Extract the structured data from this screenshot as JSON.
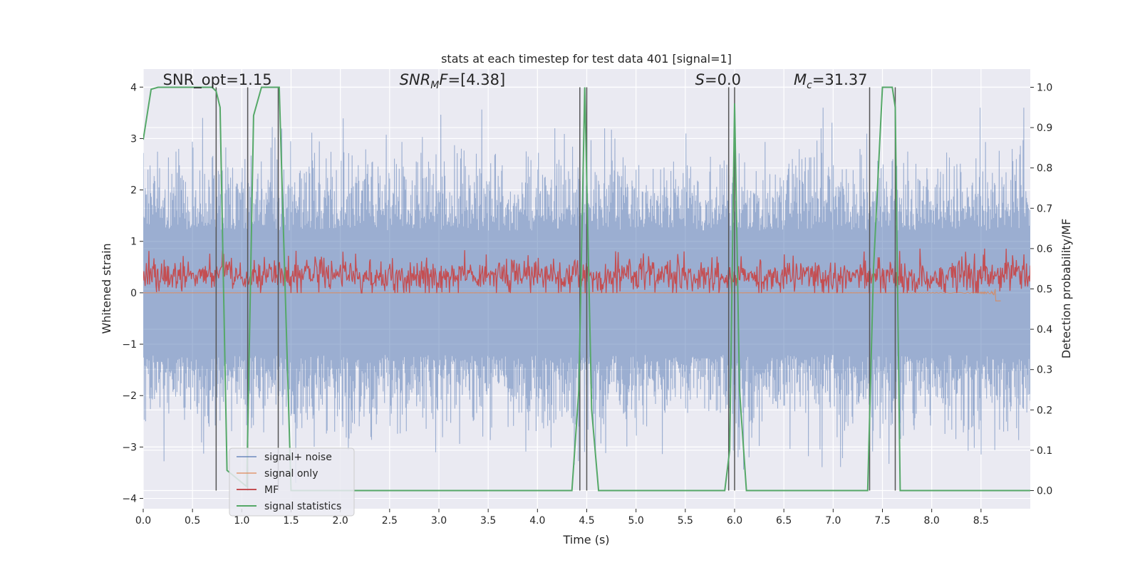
{
  "chart_data": {
    "type": "line",
    "title": "stats at each timestep for test data 401 [signal=1]",
    "xlabel": "Time (s)",
    "ylabel": "Whitened strain",
    "y2label": "Detection probability/MF",
    "xlim": [
      0.0,
      9.0
    ],
    "ylim": [
      -4.2,
      4.35
    ],
    "y2lim": [
      -0.045,
      1.045
    ],
    "xticks": [
      0.0,
      0.5,
      1.0,
      1.5,
      2.0,
      2.5,
      3.0,
      3.5,
      4.0,
      4.5,
      5.0,
      5.5,
      6.0,
      6.5,
      7.0,
      7.5,
      8.0,
      8.5
    ],
    "xtick_labels": [
      "0.0",
      "0.5",
      "1.0",
      "1.5",
      "2.0",
      "2.5",
      "3.0",
      "3.5",
      "4.0",
      "4.5",
      "5.0",
      "5.5",
      "6.0",
      "6.5",
      "7.0",
      "7.5",
      "8.0",
      "8.5"
    ],
    "yticks": [
      -4,
      -3,
      -2,
      -1,
      0,
      1,
      2,
      3,
      4
    ],
    "ytick_labels": [
      "−4",
      "−3",
      "−2",
      "−1",
      "0",
      "1",
      "2",
      "3",
      "4"
    ],
    "y2ticks": [
      0.0,
      0.1,
      0.2,
      0.3,
      0.4,
      0.5,
      0.6,
      0.7,
      0.8,
      0.9,
      1.0
    ],
    "y2tick_labels": [
      "0.0",
      "0.1",
      "0.2",
      "0.3",
      "0.4",
      "0.5",
      "0.6",
      "0.7",
      "0.8",
      "0.9",
      "1.0"
    ],
    "grid": true,
    "legend_position": "lower-left",
    "annotations": [
      {
        "text": "SNR_opt=1.15",
        "x": 0.2,
        "y": 4.1,
        "italic": false
      },
      {
        "text": "SNR_MF=[4.38]",
        "x": 2.6,
        "y": 4.1,
        "italic": true
      },
      {
        "text": "S=0.0",
        "x": 5.6,
        "y": 4.1,
        "italic": true
      },
      {
        "text": "M_c=31.37",
        "x": 6.6,
        "y": 4.1,
        "italic": true
      }
    ],
    "series": [
      {
        "name": "signal+ noise",
        "color": "#4c72b0",
        "kind": "noise",
        "amplitude_range": [
          -3.7,
          3.6
        ],
        "typical_abs": 2.2
      },
      {
        "name": "signal only",
        "color": "#dd8452",
        "kind": "chirp",
        "x_range": [
          0.0,
          8.7
        ],
        "merger_time": 8.65,
        "peak_amplitude": 0.3
      },
      {
        "name": "MF",
        "color": "#c44e52",
        "kind": "band",
        "y2_range": [
          0.5,
          0.59
        ]
      },
      {
        "name": "signal statistics",
        "color": "#55a868",
        "x": [
          0.0,
          0.08,
          0.15,
          0.7,
          0.74,
          0.78,
          0.85,
          1.05,
          1.12,
          1.2,
          1.38,
          1.5,
          4.35,
          4.42,
          4.48,
          4.55,
          4.62,
          5.9,
          5.95,
          6.0,
          6.05,
          6.12,
          7.35,
          7.41,
          7.5,
          7.6,
          7.63,
          7.68,
          9.0
        ],
        "y2": [
          0.87,
          0.995,
          1.0,
          1.0,
          0.99,
          0.95,
          0.05,
          0.01,
          0.93,
          1.0,
          1.0,
          0.0,
          0.0,
          0.25,
          1.0,
          0.2,
          0.0,
          0.0,
          0.1,
          0.96,
          0.25,
          0.0,
          0.0,
          0.55,
          1.0,
          1.0,
          0.95,
          0.0,
          0.0
        ]
      }
    ],
    "vertical_lines": [
      0.74,
      1.06,
      1.37,
      4.43,
      4.5,
      5.94,
      6.0,
      7.37,
      7.63
    ]
  }
}
